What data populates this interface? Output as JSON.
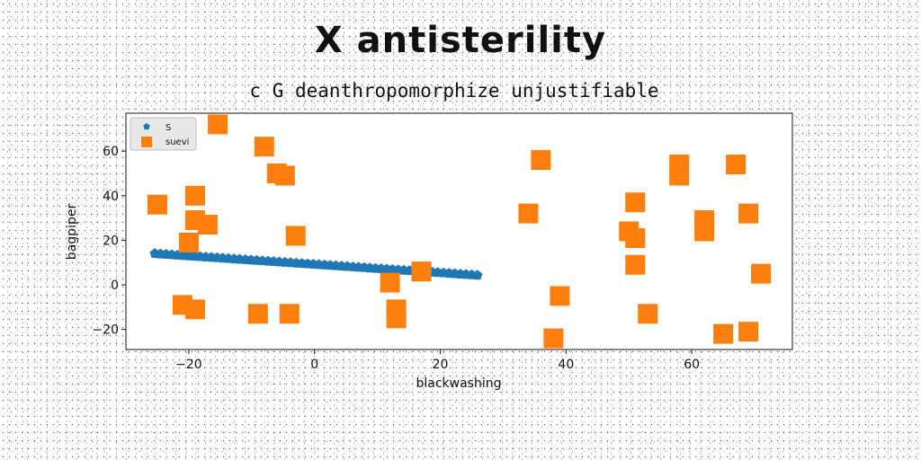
{
  "chart_data": {
    "type": "scatter",
    "title": "X antisterility",
    "subtitle": "c G deanthropomorphize unjustifiable",
    "xlabel": "blackwashing",
    "ylabel": "bagpiper",
    "xlim": [
      -30,
      76
    ],
    "ylim": [
      -29,
      77
    ],
    "xticks": [
      -20,
      0,
      20,
      40,
      60
    ],
    "yticks": [
      -20,
      0,
      20,
      40,
      60
    ],
    "grid": false,
    "legend_position": "top-left",
    "series": [
      {
        "name": "S",
        "marker": "pentagon",
        "color": "#1f77b4",
        "x": [
          -25.4,
          -24.5,
          -23.6,
          -22.7,
          -21.8,
          -20.9,
          -20.0,
          -19.1,
          -18.2,
          -17.3,
          -16.4,
          -15.5,
          -14.6,
          -13.7,
          -12.8,
          -11.9,
          -11.0,
          -10.1,
          -9.2,
          -8.3,
          -7.4,
          -6.5,
          -5.6,
          -4.7,
          -3.8,
          -2.9,
          -2.0,
          -1.1,
          -0.2,
          0.7,
          1.6,
          2.5,
          3.4,
          4.3,
          5.2,
          6.1,
          7.0,
          7.9,
          8.8,
          9.7,
          10.6,
          11.5,
          12.4,
          13.3,
          14.2,
          15.1,
          16.0,
          16.9,
          17.8,
          18.7,
          19.6,
          20.5,
          21.4,
          22.3,
          23.2,
          24.1,
          25.0,
          25.9
        ],
        "y": [
          14.0,
          13.83,
          13.66,
          13.49,
          13.32,
          13.15,
          12.98,
          12.81,
          12.64,
          12.47,
          12.3,
          12.13,
          11.96,
          11.79,
          11.62,
          11.45,
          11.28,
          11.11,
          10.94,
          10.77,
          10.6,
          10.43,
          10.26,
          10.09,
          9.92,
          9.75,
          9.58,
          9.41,
          9.24,
          9.07,
          8.9,
          8.73,
          8.56,
          8.39,
          8.22,
          8.05,
          7.88,
          7.71,
          7.54,
          7.37,
          7.2,
          7.03,
          6.86,
          6.69,
          6.52,
          6.35,
          6.18,
          6.01,
          5.84,
          5.67,
          5.5,
          5.33,
          5.16,
          4.99,
          4.82,
          4.65,
          4.48,
          4.31
        ]
      },
      {
        "name": "suevi",
        "marker": "square",
        "color": "#ff7f0e",
        "x": [
          -15.4,
          -8.0,
          -25.0,
          -19.0,
          -6.0,
          -4.7,
          -19.0,
          -17.0,
          -20.0,
          -3.0,
          -21.0,
          -19.0,
          -9.0,
          -4.0,
          12.0,
          13.0,
          13.0,
          17.0,
          36.0,
          34.0,
          39.0,
          38.0,
          51.0,
          50.0,
          51.0,
          51.0,
          53.0,
          58.0,
          58.0,
          62.0,
          62.0,
          67.0,
          69.0,
          71.0,
          65.0,
          69.0
        ],
        "y": [
          72.0,
          62.0,
          36.0,
          40.0,
          50.0,
          49.0,
          29.0,
          27.0,
          19.0,
          22.0,
          -9.0,
          -11.0,
          -13.0,
          -13.0,
          1.0,
          -11.0,
          -15.0,
          6.0,
          56.0,
          32.0,
          -5.0,
          -24.0,
          37.0,
          24.0,
          21.0,
          9.0,
          -13.0,
          54.0,
          49.0,
          29.0,
          24.0,
          54.0,
          32.0,
          5.0,
          -22.0,
          -21.0
        ]
      }
    ]
  }
}
